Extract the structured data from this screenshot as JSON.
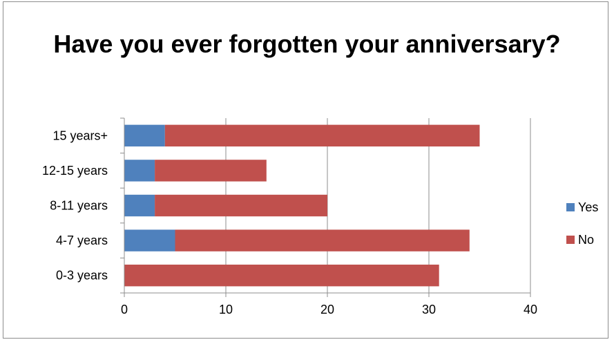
{
  "chart_data": {
    "type": "bar",
    "orientation": "horizontal",
    "stacked": true,
    "title": "Have you ever forgotten your anniversary?",
    "categories": [
      "0-3 years",
      "4-7 years",
      "8-11 years",
      "12-15 years",
      "15 years+"
    ],
    "series": [
      {
        "name": "Yes",
        "color": "#4f81bd",
        "values": [
          0,
          5,
          3,
          3,
          4
        ]
      },
      {
        "name": "No",
        "color": "#c0504d",
        "values": [
          31,
          29,
          17,
          11,
          31
        ]
      }
    ],
    "xlim": [
      0,
      40
    ],
    "xticks": [
      "0",
      "10",
      "20",
      "30",
      "40"
    ],
    "grid": true,
    "legend": "right"
  }
}
